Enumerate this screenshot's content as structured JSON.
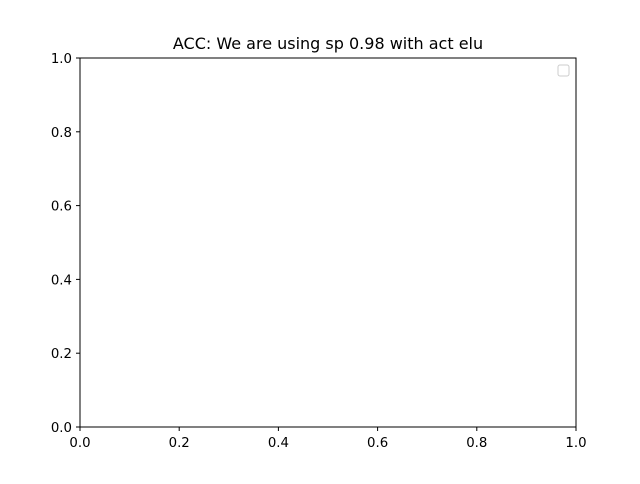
{
  "chart_data": {
    "type": "line",
    "title": "ACC: We are using sp 0.98 with act elu",
    "xlabel": "",
    "ylabel": "",
    "xlim": [
      0.0,
      1.0
    ],
    "ylim": [
      0.0,
      1.0
    ],
    "x_ticks": [
      "0.0",
      "0.2",
      "0.4",
      "0.6",
      "0.8",
      "1.0"
    ],
    "y_ticks": [
      "0.0",
      "0.2",
      "0.4",
      "0.6",
      "0.8",
      "1.0"
    ],
    "series": [],
    "grid": false,
    "legend": {
      "placement": "top-right",
      "entries": []
    }
  }
}
